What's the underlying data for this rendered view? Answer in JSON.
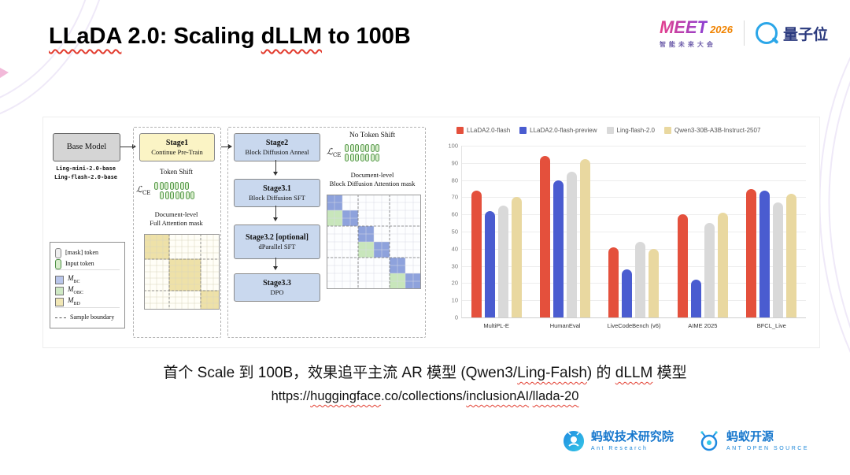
{
  "title_parts": [
    {
      "text": "LLaDA",
      "wavy": true
    },
    {
      "text": " 2.0: Scaling ",
      "wavy": false
    },
    {
      "text": "dLLM",
      "wavy": true
    },
    {
      "text": " to 100B",
      "wavy": false
    }
  ],
  "header": {
    "meet": {
      "name": "MEET",
      "year": "2026",
      "subtitle": "智能未来大会"
    },
    "qbit": {
      "name": "量子位"
    }
  },
  "figure": {
    "diagram": {
      "base_model": {
        "label": "Base Model",
        "models": [
          "Ling-mini-2.0-base",
          "Ling-flash-2.0-base"
        ]
      },
      "stages": {
        "stage1": {
          "title": "Stage1",
          "subtitle": "Continue Pre-Train"
        },
        "stage2": {
          "title": "Stage2",
          "subtitle": "Block Diffusion Anneal"
        },
        "stage3_1": {
          "title": "Stage3.1",
          "subtitle": "Block Diffusion SFT"
        },
        "stage3_2": {
          "title": "Stage3.2 [optional]",
          "subtitle": "dParallel SFT"
        },
        "stage3_3": {
          "title": "Stage3.3",
          "subtitle": "DPO"
        }
      },
      "left_panel": {
        "token_shift": "Token Shift",
        "loss_symbol": "ℒ",
        "loss_sub": "CE",
        "mask_caption_1": "Document-level",
        "mask_caption_2": "Full Attention mask"
      },
      "right_panel": {
        "no_token_shift": "No Token Shift",
        "loss_symbol": "ℒ",
        "loss_sub": "CE",
        "mask_caption_1": "Document-level",
        "mask_caption_2": "Block Diffusion Attention mask"
      },
      "legend": [
        {
          "type": "mask-token",
          "label": "[mask] token"
        },
        {
          "type": "input-token",
          "label": "Input token"
        },
        {
          "type": "m-bc",
          "label": "M",
          "sub": "BC"
        },
        {
          "type": "m-obc",
          "label": "M",
          "sub": "OBC"
        },
        {
          "type": "m-bd",
          "label": "M",
          "sub": "BD"
        },
        {
          "type": "sample-boundary",
          "label": "Sample boundary"
        }
      ]
    }
  },
  "chart_data": {
    "type": "bar",
    "title": "",
    "categories": [
      "MultiPL-E",
      "HumanEval",
      "LiveCodeBench (v6)",
      "AIME 2025",
      "BFCL_Live"
    ],
    "series": [
      {
        "name": "LLaDA2.0-flash",
        "color": "#e4503c",
        "values": [
          74,
          94,
          41,
          60,
          75
        ]
      },
      {
        "name": "LLaDA2.0-flash-preview",
        "color": "#4a5cd0",
        "values": [
          62,
          80,
          28,
          22,
          74
        ]
      },
      {
        "name": "Ling-flash-2.0",
        "color": "#d9d9d9",
        "values": [
          65,
          85,
          44,
          55,
          67
        ]
      },
      {
        "name": "Qwen3-30B-A3B-Instruct-2507",
        "color": "#e9d8a0",
        "values": [
          70,
          92,
          40,
          61,
          72
        ]
      }
    ],
    "ylim": [
      0,
      100
    ],
    "yticks": [
      0,
      10,
      20,
      30,
      40,
      50,
      60,
      70,
      80,
      90,
      100
    ],
    "grid": true,
    "legend_position": "top"
  },
  "footer": {
    "caption_parts": [
      {
        "text": "首个 Scale 到 100B，效果追平主流 AR 模型 (Qwen3/",
        "wavy": false
      },
      {
        "text": "Ling-Falsh",
        "wavy": true
      },
      {
        "text": ") 的 ",
        "wavy": false
      },
      {
        "text": "dLLM",
        "wavy": true
      },
      {
        "text": " 模型",
        "wavy": false
      }
    ],
    "url_parts": [
      {
        "text": "https://",
        "wavy": false
      },
      {
        "text": "huggingface",
        "wavy": true
      },
      {
        "text": ".co/collections/",
        "wavy": false
      },
      {
        "text": "inclusionAI",
        "wavy": true
      },
      {
        "text": "/",
        "wavy": false
      },
      {
        "text": "llada-20",
        "wavy": true
      }
    ],
    "ant_research": {
      "cn": "蚂蚁技术研究院",
      "en": "Ant Research"
    },
    "ant_open_source": {
      "cn": "蚂蚁开源",
      "en": "ANT OPEN SOURCE"
    }
  }
}
